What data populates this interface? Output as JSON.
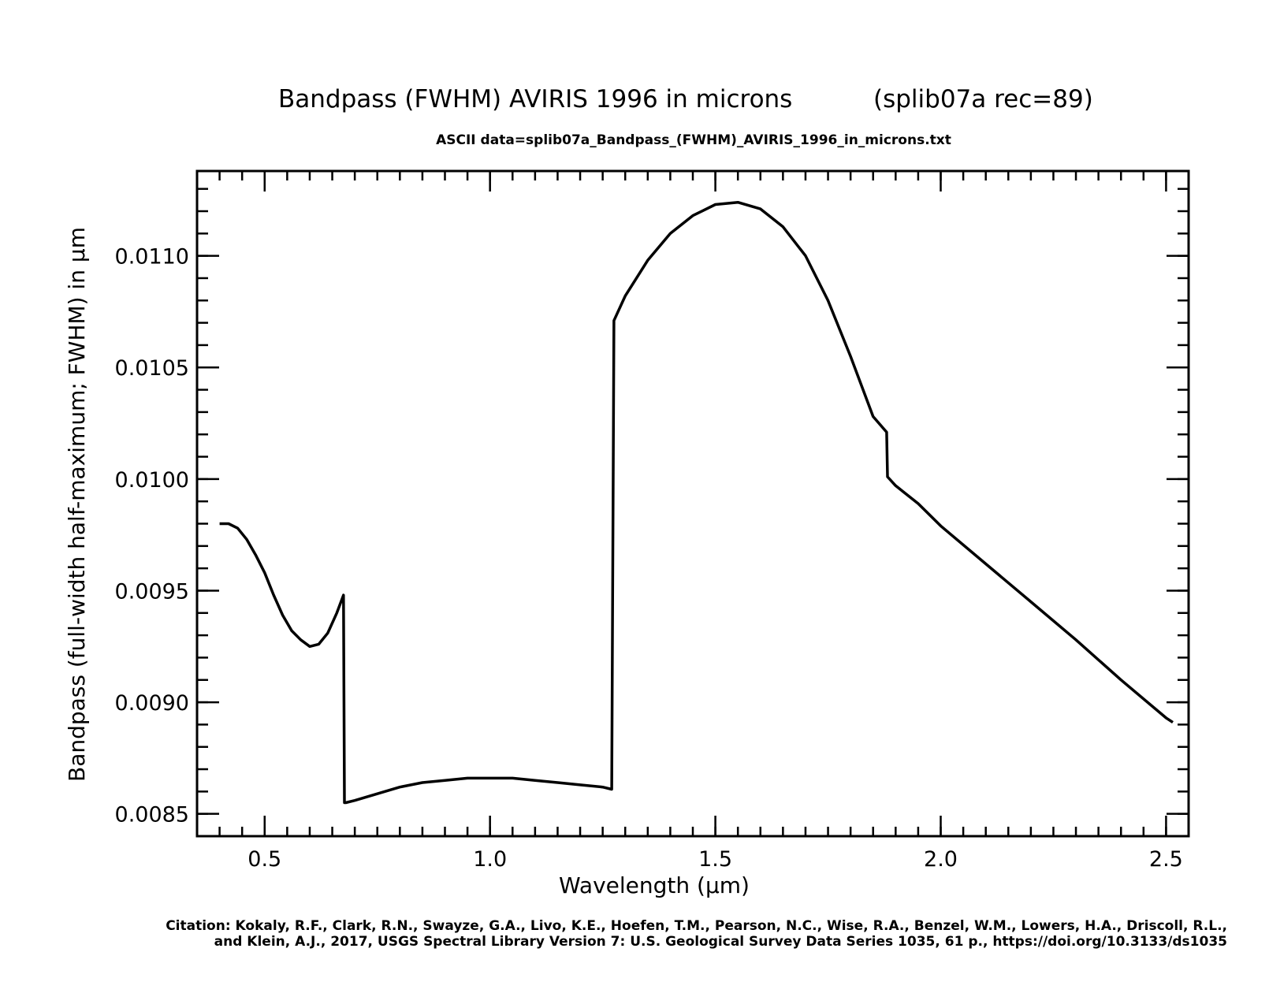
{
  "chart_data": {
    "type": "line",
    "title_left": "Bandpass (FWHM) AVIRIS 1996 in microns",
    "title_right": "(splib07a rec=89)",
    "subtitle": "ASCII data=splib07a_Bandpass_(FWHM)_AVIRIS_1996_in_microns.txt",
    "xlabel": "Wavelength (μm)",
    "ylabel": "Bandpass (full-width half-maximum; FWHM) in μm",
    "xlim": [
      0.35,
      2.55
    ],
    "ylim": [
      0.0084,
      0.01138
    ],
    "grid": false,
    "x_major_ticks": [
      0.5,
      1.0,
      1.5,
      2.0,
      2.5
    ],
    "x_tick_labels": [
      "0.5",
      "1.0",
      "1.5",
      "2.0",
      "2.5"
    ],
    "x_minor_step": 0.05,
    "y_major_ticks": [
      0.0085,
      0.009,
      0.0095,
      0.01,
      0.0105,
      0.011
    ],
    "y_tick_labels": [
      "0.0085",
      "0.0090",
      "0.0095",
      "0.0100",
      "0.0105",
      "0.0110"
    ],
    "y_minor_step": 0.0001,
    "line_color": "#000000",
    "series": [
      {
        "x": [
          0.4,
          0.42,
          0.44,
          0.46,
          0.48,
          0.5,
          0.52,
          0.54,
          0.56,
          0.58,
          0.6,
          0.62,
          0.64,
          0.66,
          0.675,
          0.677,
          0.68,
          0.7,
          0.75,
          0.8,
          0.85,
          0.9,
          0.95,
          1.0,
          1.05,
          1.1,
          1.15,
          1.2,
          1.25,
          1.27,
          1.275,
          1.3,
          1.35,
          1.4,
          1.45,
          1.5,
          1.55,
          1.6,
          1.65,
          1.7,
          1.75,
          1.8,
          1.85,
          1.88,
          1.882,
          1.9,
          1.95,
          2.0,
          2.1,
          2.2,
          2.3,
          2.4,
          2.5,
          2.515
        ],
        "y": [
          0.0098,
          0.0098,
          0.00978,
          0.00973,
          0.00966,
          0.00958,
          0.00948,
          0.00939,
          0.00932,
          0.00928,
          0.00925,
          0.00926,
          0.00931,
          0.0094,
          0.00948,
          0.00855,
          0.00855,
          0.00856,
          0.00859,
          0.00862,
          0.00864,
          0.00865,
          0.00866,
          0.00866,
          0.00866,
          0.00865,
          0.00864,
          0.00863,
          0.00862,
          0.00861,
          0.01071,
          0.01082,
          0.01098,
          0.0111,
          0.01118,
          0.01123,
          0.01124,
          0.01121,
          0.01113,
          0.011,
          0.0108,
          0.01055,
          0.01028,
          0.01021,
          0.01001,
          0.00997,
          0.00989,
          0.00979,
          0.00962,
          0.00945,
          0.00928,
          0.0091,
          0.00893,
          0.00891
        ]
      }
    ]
  },
  "citation": {
    "line1": "Citation: Kokaly, R.F., Clark, R.N., Swayze, G.A., Livo, K.E., Hoefen, T.M., Pearson, N.C., Wise, R.A., Benzel, W.M., Lowers, H.A., Driscoll, R.L.,",
    "line2": "and Klein, A.J., 2017, USGS Spectral Library Version 7: U.S. Geological Survey Data Series 1035, 61 p., https://doi.org/10.3133/ds1035"
  }
}
